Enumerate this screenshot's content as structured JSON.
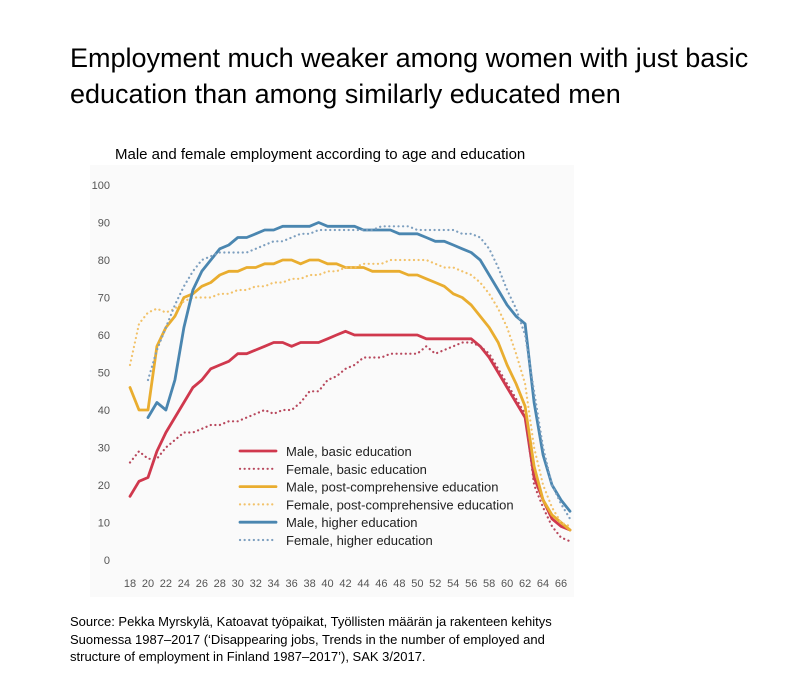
{
  "headline": "Employment much weaker among women with just basic education than among similarly educated men",
  "source": {
    "line1": "Source: Pekka Myrskylä, Katoavat työpaikat, Työllisten määrän ja rakenteen kehitys",
    "line2": "Suomessa 1987–2017 (‘Disappearing jobs, Trends in the number of employed and",
    "line3": "structure of employment in Finland 1987–2017’), SAK 3/2017."
  },
  "chart_data": {
    "type": "line",
    "title": "Male and female employment according to age and education",
    "xlabel": "",
    "ylabel": "",
    "xlim": [
      18,
      67
    ],
    "ylim": [
      0,
      100
    ],
    "x_ticks": [
      18,
      20,
      22,
      24,
      26,
      28,
      30,
      32,
      34,
      36,
      38,
      40,
      42,
      44,
      46,
      48,
      50,
      52,
      54,
      56,
      58,
      60,
      62,
      64,
      66
    ],
    "y_ticks": [
      0,
      10,
      20,
      30,
      40,
      50,
      60,
      70,
      80,
      90,
      100
    ],
    "grid": false,
    "legend_position": "bottom-center",
    "series": [
      {
        "name": "Male, basic education",
        "color": "#d0384d",
        "style": "solid",
        "x": [
          18,
          19,
          20,
          21,
          22,
          23,
          24,
          25,
          26,
          27,
          28,
          29,
          30,
          31,
          32,
          33,
          34,
          35,
          36,
          37,
          38,
          39,
          40,
          41,
          42,
          43,
          44,
          45,
          46,
          47,
          48,
          49,
          50,
          51,
          52,
          53,
          54,
          55,
          56,
          57,
          58,
          59,
          60,
          61,
          62,
          63,
          64,
          65,
          66,
          67
        ],
        "y": [
          17,
          21,
          22,
          29,
          34,
          38,
          42,
          46,
          48,
          51,
          52,
          53,
          55,
          55,
          56,
          57,
          58,
          58,
          57,
          58,
          58,
          58,
          59,
          60,
          61,
          60,
          60,
          60,
          60,
          60,
          60,
          60,
          60,
          59,
          59,
          59,
          59,
          59,
          59,
          57,
          54,
          50,
          46,
          42,
          38,
          22,
          16,
          11,
          9,
          8
        ]
      },
      {
        "name": "Female, basic education",
        "color": "#b8485d",
        "style": "dotted",
        "x": [
          18,
          19,
          20,
          21,
          22,
          23,
          24,
          25,
          26,
          27,
          28,
          29,
          30,
          31,
          32,
          33,
          34,
          35,
          36,
          37,
          38,
          39,
          40,
          41,
          42,
          43,
          44,
          45,
          46,
          47,
          48,
          49,
          50,
          51,
          52,
          53,
          54,
          55,
          56,
          57,
          58,
          59,
          60,
          61,
          62,
          63,
          64,
          65,
          66,
          67
        ],
        "y": [
          26,
          29,
          27,
          27,
          30,
          32,
          34,
          34,
          35,
          36,
          36,
          37,
          37,
          38,
          39,
          40,
          39,
          40,
          40,
          42,
          45,
          45,
          48,
          49,
          51,
          52,
          54,
          54,
          54,
          55,
          55,
          55,
          55,
          57,
          55,
          56,
          57,
          58,
          58,
          57,
          55,
          51,
          47,
          43,
          39,
          20,
          14,
          9,
          6,
          5
        ]
      },
      {
        "name": "Male, post-comprehensive education",
        "color": "#e9ad2f",
        "style": "solid",
        "x": [
          18,
          19,
          20,
          21,
          22,
          23,
          24,
          25,
          26,
          27,
          28,
          29,
          30,
          31,
          32,
          33,
          34,
          35,
          36,
          37,
          38,
          39,
          40,
          41,
          42,
          43,
          44,
          45,
          46,
          47,
          48,
          49,
          50,
          51,
          52,
          53,
          54,
          55,
          56,
          57,
          58,
          59,
          60,
          61,
          62,
          63,
          64,
          65,
          66,
          67
        ],
        "y": [
          46,
          40,
          40,
          57,
          62,
          65,
          70,
          71,
          73,
          74,
          76,
          77,
          77,
          78,
          78,
          79,
          79,
          80,
          80,
          79,
          80,
          80,
          79,
          79,
          78,
          78,
          78,
          77,
          77,
          77,
          77,
          76,
          76,
          75,
          74,
          73,
          71,
          70,
          68,
          65,
          62,
          58,
          52,
          47,
          41,
          25,
          16,
          12,
          10,
          8
        ]
      },
      {
        "name": "Female, post-comprehensive education",
        "color": "#f2c26a",
        "style": "dotted",
        "x": [
          18,
          19,
          20,
          21,
          22,
          23,
          24,
          25,
          26,
          27,
          28,
          29,
          30,
          31,
          32,
          33,
          34,
          35,
          36,
          37,
          38,
          39,
          40,
          41,
          42,
          43,
          44,
          45,
          46,
          47,
          48,
          49,
          50,
          51,
          52,
          53,
          54,
          55,
          56,
          57,
          58,
          59,
          60,
          61,
          62,
          63,
          64,
          65,
          66,
          67
        ],
        "y": [
          52,
          63,
          66,
          67,
          66,
          67,
          69,
          70,
          70,
          70,
          71,
          71,
          72,
          72,
          73,
          73,
          74,
          74,
          75,
          75,
          76,
          76,
          77,
          77,
          78,
          78,
          79,
          79,
          79,
          80,
          80,
          80,
          80,
          80,
          79,
          78,
          78,
          77,
          76,
          74,
          71,
          67,
          62,
          55,
          47,
          30,
          20,
          14,
          10,
          9
        ]
      },
      {
        "name": "Male, higher education",
        "color": "#4a86b0",
        "style": "solid",
        "x": [
          20,
          21,
          22,
          23,
          24,
          25,
          26,
          27,
          28,
          29,
          30,
          31,
          32,
          33,
          34,
          35,
          36,
          37,
          38,
          39,
          40,
          41,
          42,
          43,
          44,
          45,
          46,
          47,
          48,
          49,
          50,
          51,
          52,
          53,
          54,
          55,
          56,
          57,
          58,
          59,
          60,
          61,
          62,
          63,
          64,
          65,
          66,
          67
        ],
        "y": [
          38,
          42,
          40,
          48,
          62,
          72,
          77,
          80,
          83,
          84,
          86,
          86,
          87,
          88,
          88,
          89,
          89,
          89,
          89,
          90,
          89,
          89,
          89,
          89,
          88,
          88,
          88,
          88,
          87,
          87,
          87,
          86,
          85,
          85,
          84,
          83,
          82,
          80,
          76,
          72,
          68,
          65,
          63,
          42,
          28,
          20,
          16,
          13
        ]
      },
      {
        "name": "Female, higher education",
        "color": "#7d9fbf",
        "style": "dotted",
        "x": [
          20,
          21,
          22,
          23,
          24,
          25,
          26,
          27,
          28,
          29,
          30,
          31,
          32,
          33,
          34,
          35,
          36,
          37,
          38,
          39,
          40,
          41,
          42,
          43,
          44,
          45,
          46,
          47,
          48,
          49,
          50,
          51,
          52,
          53,
          54,
          55,
          56,
          57,
          58,
          59,
          60,
          61,
          62,
          63,
          64,
          65,
          66,
          67
        ],
        "y": [
          48,
          56,
          62,
          68,
          73,
          77,
          80,
          81,
          82,
          82,
          82,
          82,
          83,
          84,
          85,
          85,
          86,
          87,
          87,
          88,
          88,
          88,
          88,
          88,
          88,
          88,
          89,
          89,
          89,
          89,
          88,
          88,
          88,
          88,
          88,
          87,
          87,
          86,
          83,
          78,
          72,
          67,
          60,
          45,
          30,
          20,
          15,
          11
        ]
      }
    ]
  }
}
